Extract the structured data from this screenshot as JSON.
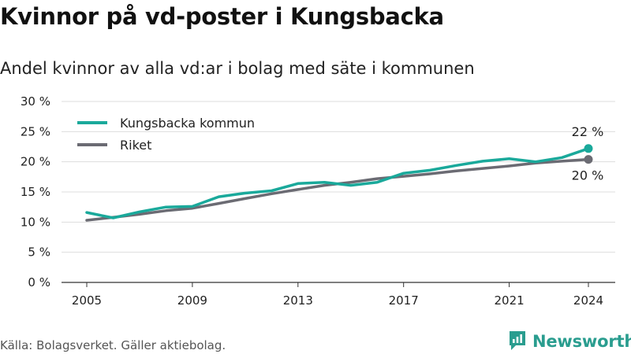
{
  "chart_data": {
    "type": "line",
    "title": "Kvinnor på vd-poster i Kungsbacka",
    "subtitle": "Andel kvinnor av alla vd:ar i bolag med säte i kommunen",
    "y_ticks": [
      "0 %",
      "5 %",
      "10 %",
      "15 %",
      "20 %",
      "25 %",
      "30 %"
    ],
    "ylim": [
      0,
      30
    ],
    "x_ticks": [
      "2005",
      "2009",
      "2013",
      "2017",
      "2021",
      "2024"
    ],
    "xlim": [
      2005,
      2024
    ],
    "grid": "horizontal",
    "legend_position": "top-left",
    "series": [
      {
        "name": "Kungsbacka kommun",
        "color": "#1aa99b",
        "x": [
          2005,
          2006,
          2007,
          2008,
          2009,
          2010,
          2011,
          2012,
          2013,
          2014,
          2015,
          2016,
          2017,
          2018,
          2019,
          2020,
          2021,
          2022,
          2023,
          2024
        ],
        "values": [
          11.6,
          10.7,
          11.7,
          12.5,
          12.6,
          14.2,
          14.8,
          15.2,
          16.4,
          16.6,
          16.1,
          16.6,
          18.1,
          18.6,
          19.4,
          20.1,
          20.5,
          20.0,
          20.7,
          22.2
        ],
        "end_label": "22 %"
      },
      {
        "name": "Riket",
        "color": "#6b6b73",
        "x": [
          2005,
          2006,
          2007,
          2008,
          2009,
          2010,
          2011,
          2012,
          2013,
          2014,
          2015,
          2016,
          2017,
          2018,
          2019,
          2020,
          2021,
          2022,
          2023,
          2024
        ],
        "values": [
          10.3,
          10.8,
          11.3,
          11.9,
          12.3,
          13.1,
          13.9,
          14.7,
          15.4,
          16.1,
          16.6,
          17.2,
          17.6,
          18.0,
          18.5,
          18.9,
          19.3,
          19.8,
          20.1,
          20.4
        ],
        "end_label": "20 %"
      }
    ]
  },
  "footer": {
    "source": "Källa: Bolagsverket. Gäller aktiebolag."
  },
  "logo": {
    "text": "Newsworthy"
  },
  "colors": {
    "grid": "#dddddd",
    "axis": "#333333",
    "logo": "#2a9d8f"
  }
}
